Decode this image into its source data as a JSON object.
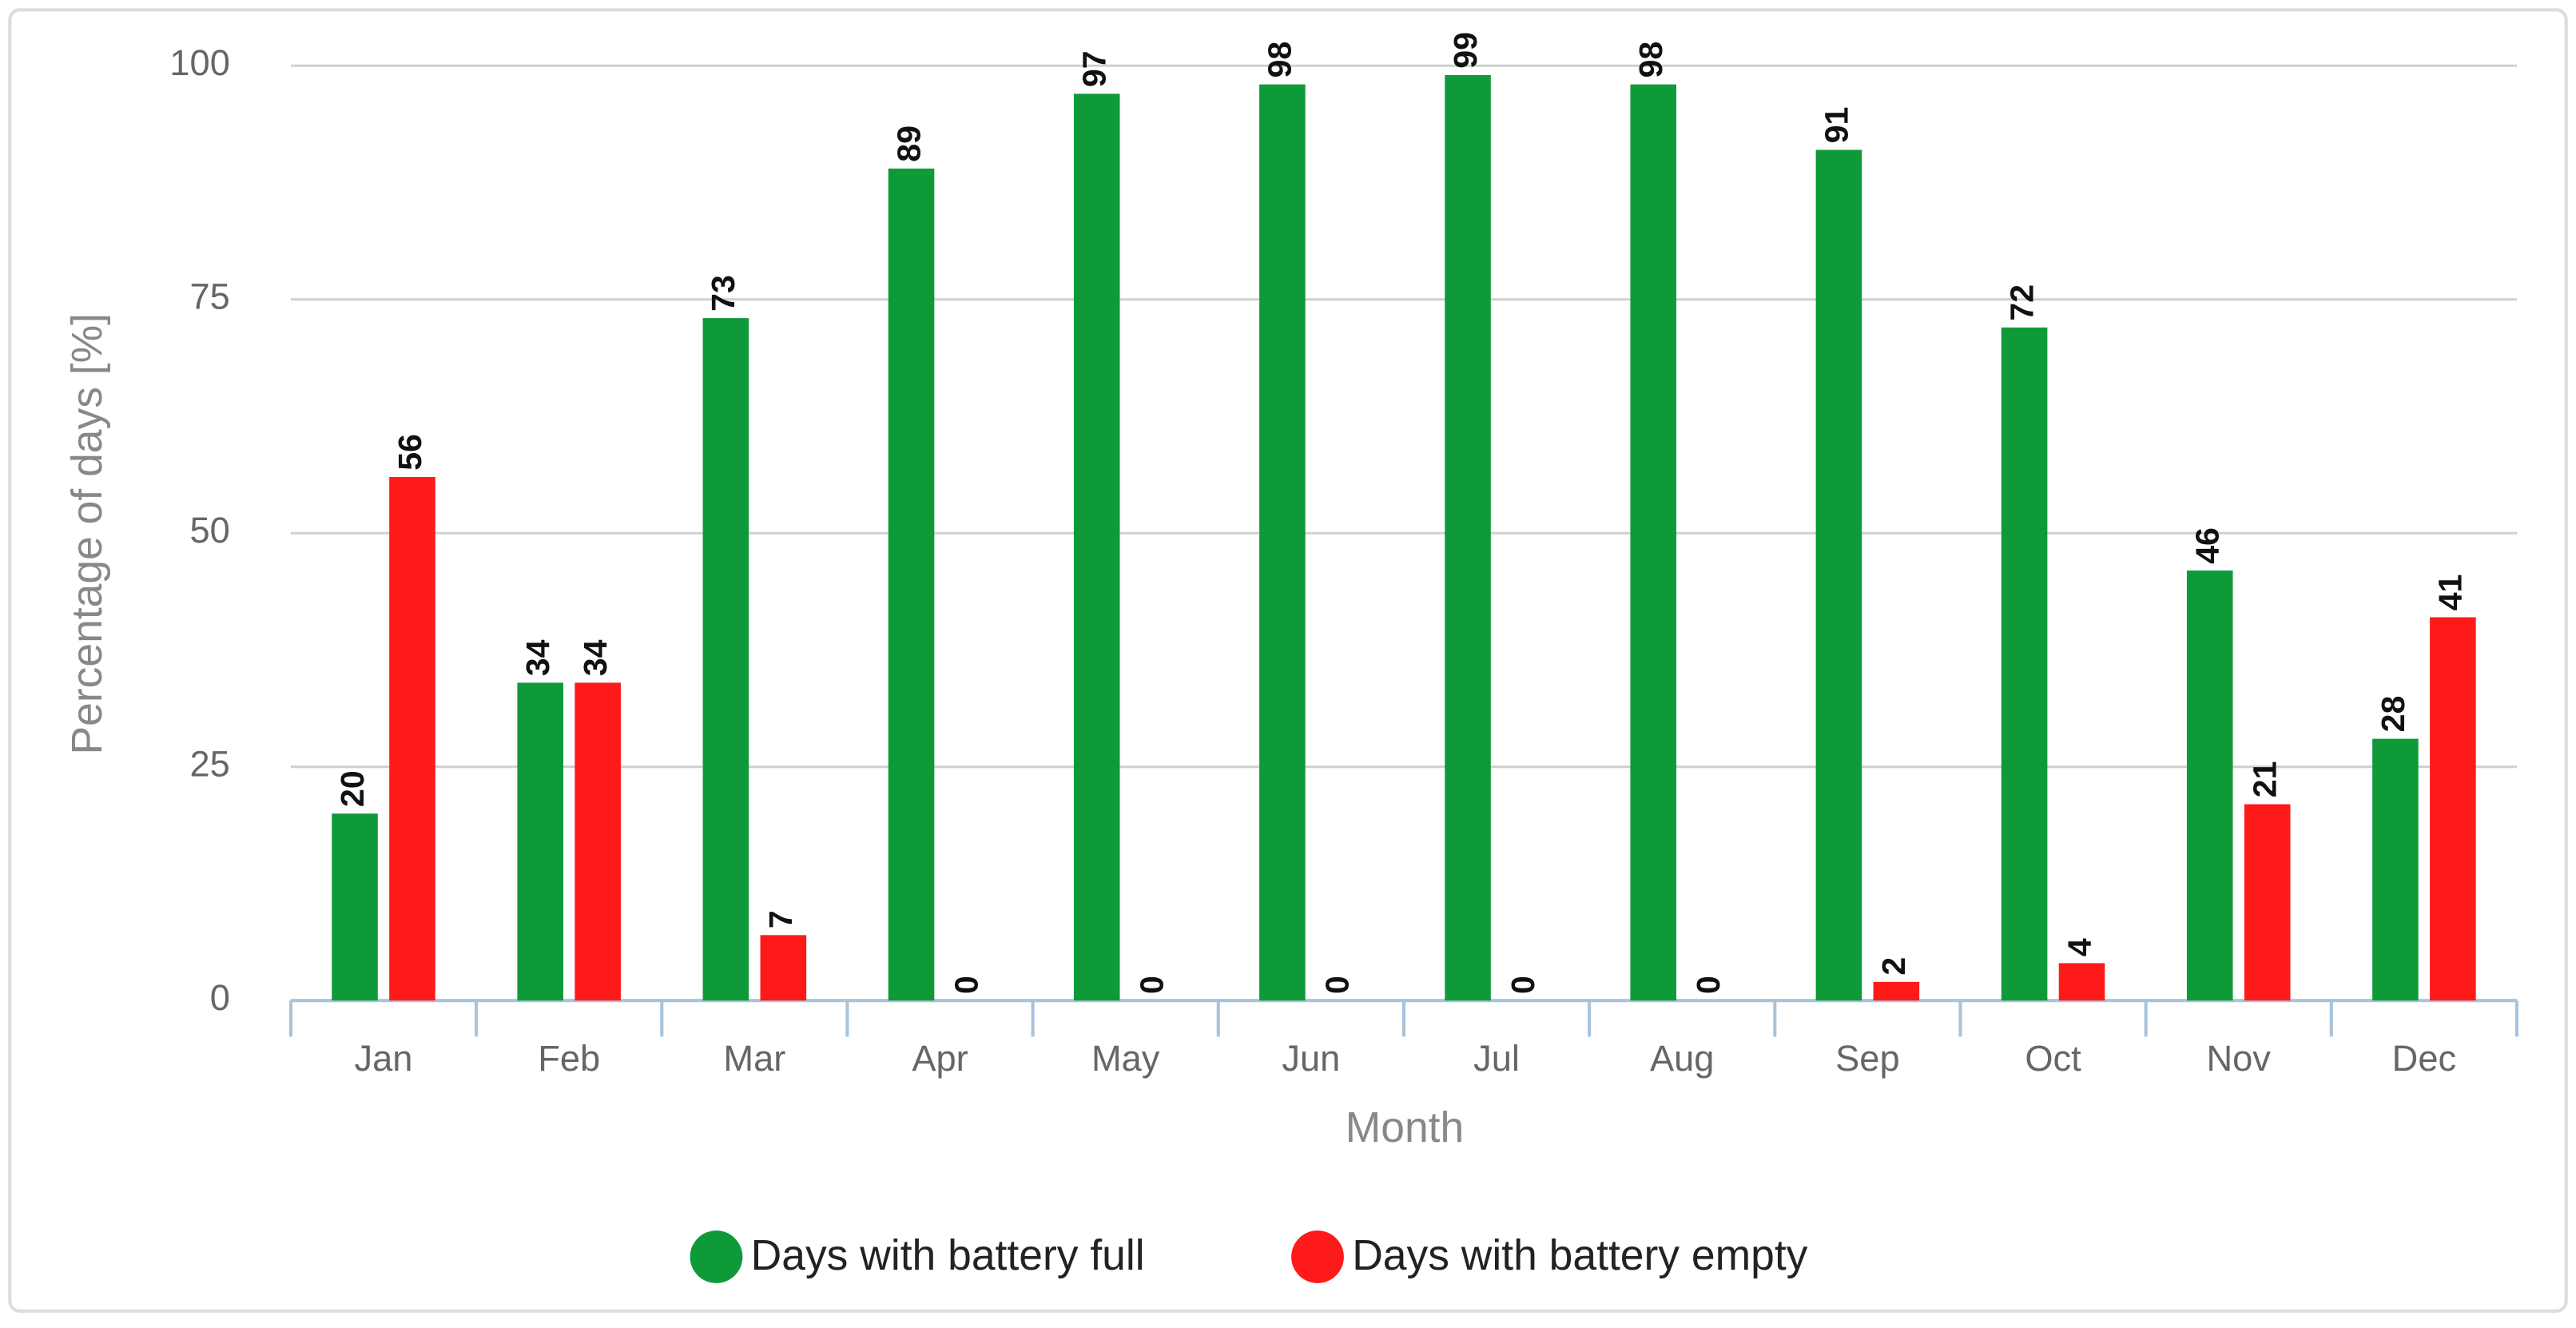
{
  "chart_data": {
    "type": "bar",
    "y_label": "Percentage of days [%]",
    "x_label": "Month",
    "categories": [
      "Jan",
      "Feb",
      "Mar",
      "Apr",
      "May",
      "Jun",
      "Jul",
      "Aug",
      "Sep",
      "Oct",
      "Nov",
      "Dec"
    ],
    "series": [
      {
        "name": "Days with battery full",
        "color": "#0f9a3a",
        "values": [
          20,
          34,
          73,
          89,
          97,
          98,
          99,
          98,
          91,
          72,
          46,
          28
        ]
      },
      {
        "name": "Days with battery empty",
        "color": "#ff1a1a",
        "values": [
          56,
          34,
          7,
          0,
          0,
          0,
          0,
          0,
          2,
          4,
          21,
          41
        ]
      }
    ],
    "ylim": [
      0,
      100
    ],
    "yticks": [
      0,
      25,
      50,
      75,
      100
    ],
    "grid": true,
    "legend": "bottom"
  }
}
